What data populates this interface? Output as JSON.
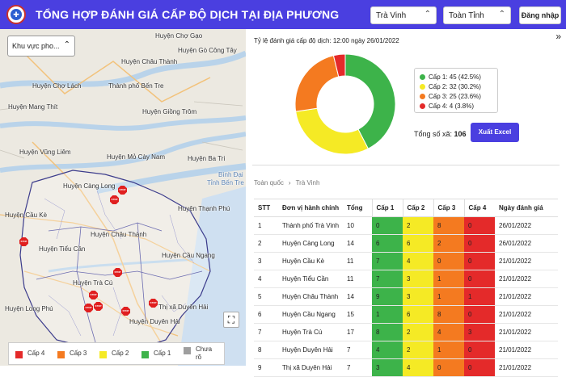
{
  "header": {
    "title": "TỔNG HỢP ĐÁNH GIÁ CẤP ĐỘ DỊCH TẠI ĐỊA PHƯƠNG",
    "province_select": "Trà Vinh",
    "scope_select": "Toàn Tỉnh",
    "login_label": "Đăng nhập"
  },
  "map": {
    "region_select": "Khu vực pho...",
    "places": [
      "Huyện Chợ Gạo",
      "Huyện Gò Công Tây",
      "Huyện Châu Thành",
      "Huyện Chợ Lách",
      "Thành phố Bến Tre",
      "Huyện Mang Thít",
      "Huyện Giồng Trôm",
      "Huyện Vũng Liêm",
      "Huyện Mỏ Cày Nam",
      "Huyện Ba Tri",
      "Bình Đại",
      "Tỉnh Bến Tre",
      "Huyện Càng Long",
      "Huyện Thạnh Phú",
      "Huyện Cầu Kè",
      "Huyện Châu Thành",
      "Huyện Tiểu Cần",
      "Huyện Cầu Ngang",
      "Huyện Trà Cú",
      "Thị xã Duyên Hải",
      "Huyện Duyên Hải",
      "Huyện Long Phú"
    ],
    "legend": [
      {
        "label": "Cấp 4",
        "color": "#e42a2a"
      },
      {
        "label": "Cấp 3",
        "color": "#f47a20"
      },
      {
        "label": "Cấp 2",
        "color": "#f5ea25"
      },
      {
        "label": "Cấp 1",
        "color": "#3db34a"
      },
      {
        "label": "Chưa rõ",
        "color": "#9e9e9e"
      }
    ],
    "stop_label": "STOP"
  },
  "panel": {
    "rate_title": "Tỷ lệ đánh giá cấp độ dịch: 12:00 ngày 26/01/2022",
    "total_label": "Tổng số xã:",
    "total_value": "106",
    "excel_label": "Xuất Excel",
    "breadcrumb": [
      "Toàn quốc",
      "Trà Vinh"
    ]
  },
  "chart_data": {
    "type": "pie",
    "categories": [
      "Cấp 1",
      "Cấp 2",
      "Cấp 3",
      "Cấp 4"
    ],
    "values": [
      45,
      32,
      25,
      4
    ],
    "labels": [
      "Cấp 1: 45 (42.5%)",
      "Cấp 2: 32 (30.2%)",
      "Cấp 3: 25 (23.6%)",
      "Cấp 4: 4 (3.8%)"
    ],
    "colors": [
      "#3db34a",
      "#f5ea25",
      "#f47a20",
      "#e42a2a"
    ]
  },
  "table": {
    "headers": [
      "STT",
      "Đơn vị hành chính",
      "Tổng",
      "Cấp 1",
      "Cấp 2",
      "Cấp 3",
      "Cấp 4",
      "Ngày đánh giá"
    ],
    "rows": [
      [
        "1",
        "Thành phố Trà Vinh",
        "10",
        "0",
        "2",
        "8",
        "0",
        "26/01/2022"
      ],
      [
        "2",
        "Huyện Càng Long",
        "14",
        "6",
        "6",
        "2",
        "0",
        "26/01/2022"
      ],
      [
        "3",
        "Huyện Cầu Kè",
        "11",
        "7",
        "4",
        "0",
        "0",
        "21/01/2022"
      ],
      [
        "4",
        "Huyện Tiểu Cần",
        "11",
        "7",
        "3",
        "1",
        "0",
        "21/01/2022"
      ],
      [
        "5",
        "Huyện Châu Thành",
        "14",
        "9",
        "3",
        "1",
        "1",
        "21/01/2022"
      ],
      [
        "6",
        "Huyện Cầu Ngang",
        "15",
        "1",
        "6",
        "8",
        "0",
        "21/01/2022"
      ],
      [
        "7",
        "Huyện Trà Cú",
        "17",
        "8",
        "2",
        "4",
        "3",
        "21/01/2022"
      ],
      [
        "8",
        "Huyện Duyên Hải",
        "7",
        "4",
        "2",
        "1",
        "0",
        "21/01/2022"
      ],
      [
        "9",
        "Thị xã Duyên Hải",
        "7",
        "3",
        "4",
        "0",
        "0",
        "21/01/2022"
      ]
    ]
  }
}
